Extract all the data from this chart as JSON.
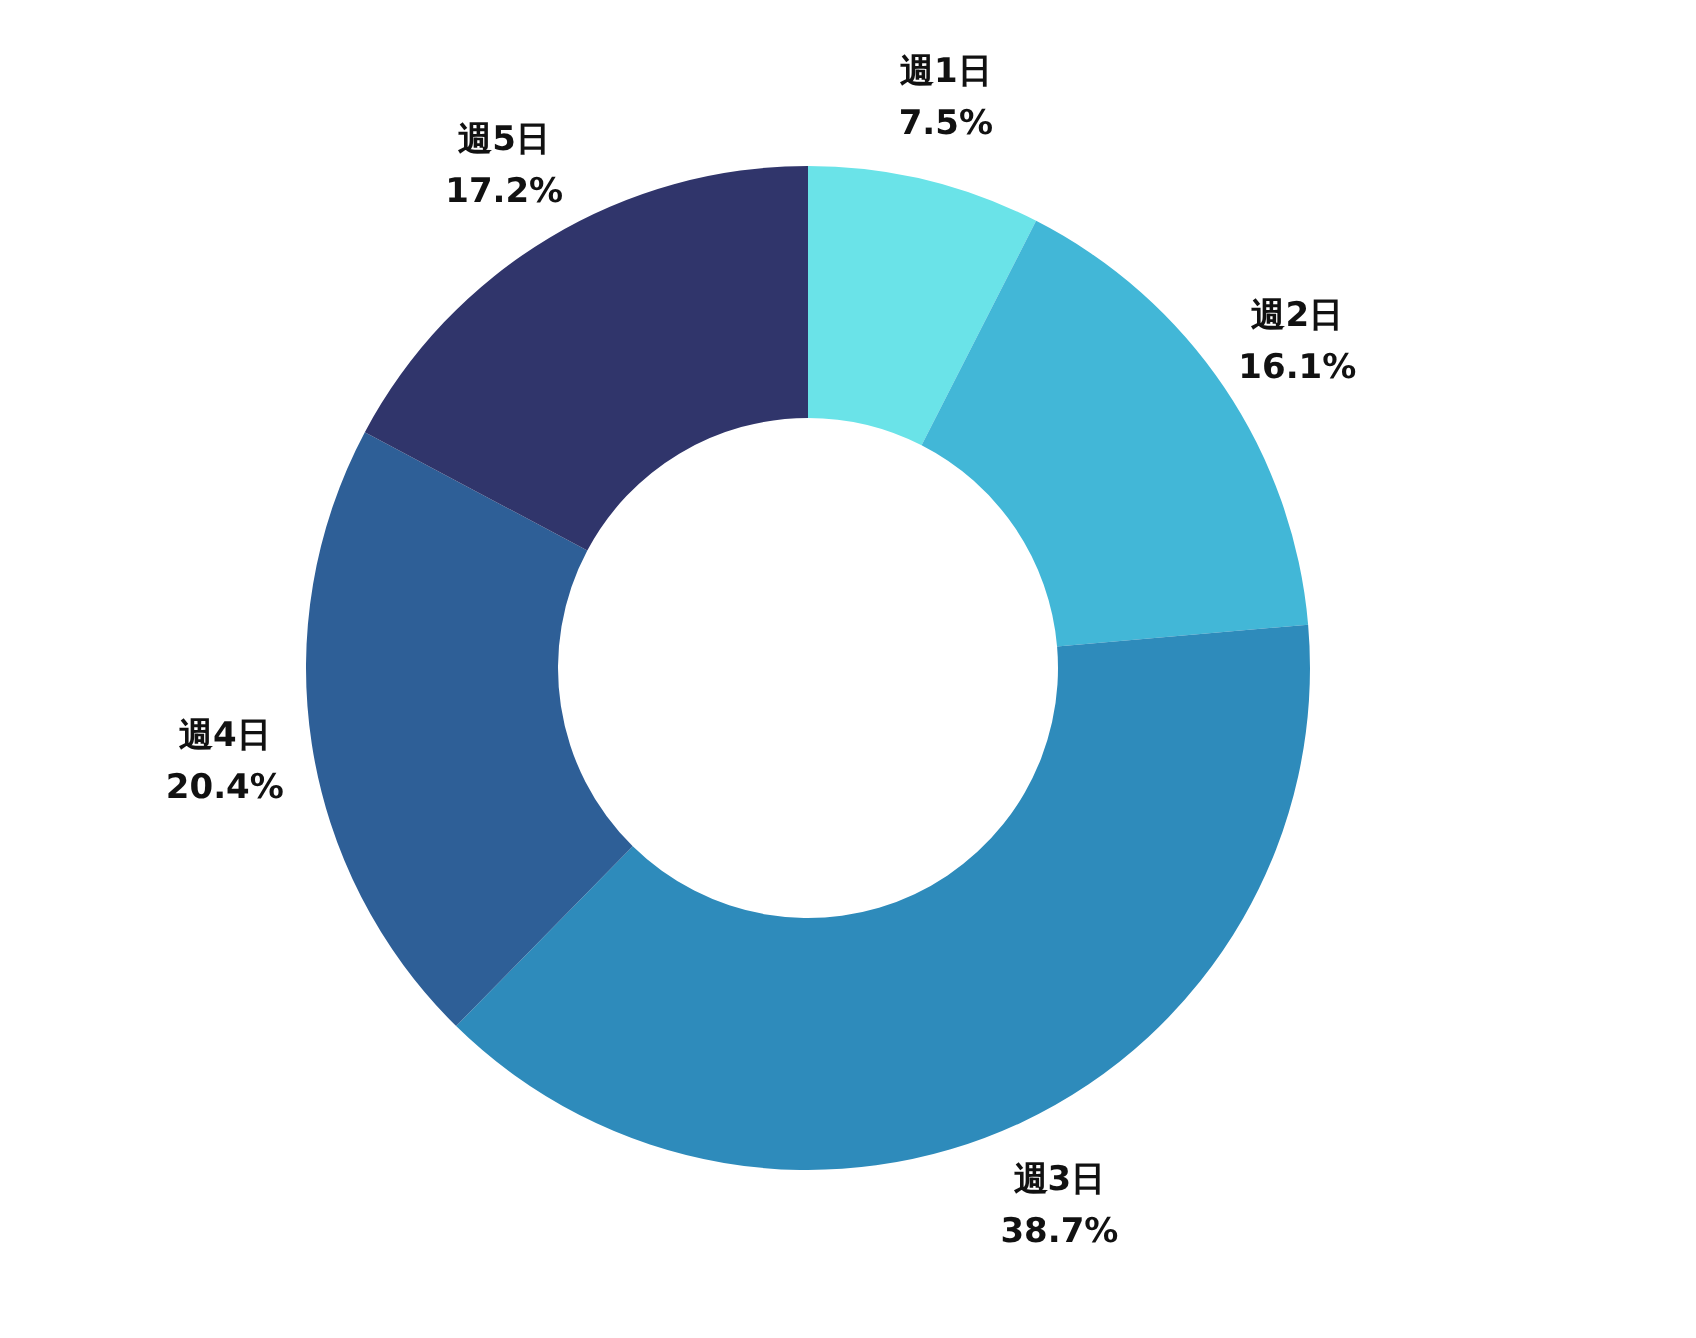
{
  "chart_data": {
    "type": "donut",
    "categories": [
      "週1日",
      "週2日",
      "週3日",
      "週4日",
      "週5日"
    ],
    "values": [
      7.5,
      16.1,
      38.7,
      20.4,
      17.2
    ],
    "value_labels": [
      "7.5%",
      "16.1%",
      "38.7%",
      "20.4%",
      "17.2%"
    ],
    "colors": [
      "#6ae3e8",
      "#42b7d7",
      "#2e8bbb",
      "#2e5f97",
      "#30356b"
    ]
  }
}
